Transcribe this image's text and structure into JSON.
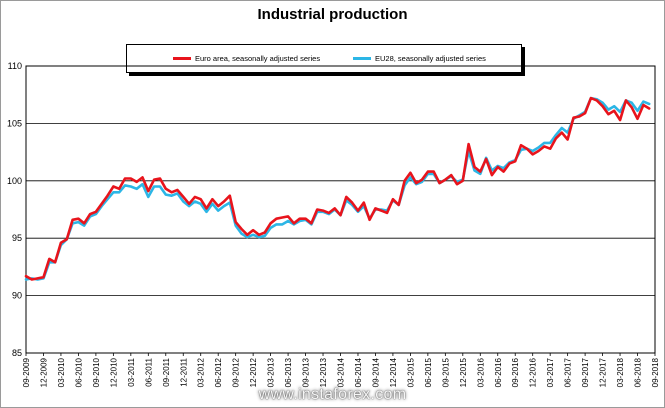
{
  "chart_data": {
    "type": "line",
    "title": "Industrial production",
    "xlabel": "",
    "ylabel": "",
    "ylim": [
      85,
      110
    ],
    "yticks": [
      85,
      90,
      95,
      100,
      105,
      110
    ],
    "grid": true,
    "legend_position": "top",
    "x_tick_labels": [
      "09-2009",
      "12-2009",
      "03-2010",
      "06-2010",
      "09-2010",
      "12-2010",
      "03-2011",
      "06-2011",
      "09-2011",
      "12-2011",
      "03-2012",
      "06-2012",
      "09-2012",
      "12-2012",
      "03-2013",
      "06-2013",
      "09-2013",
      "12-2013",
      "03-2014",
      "06-2014",
      "09-2014",
      "12-2014",
      "03-2015",
      "06-2015",
      "09-2015",
      "12-2015",
      "03-2016",
      "06-2016",
      "09-2016",
      "12-2016",
      "03-2017",
      "06-2017",
      "09-2017",
      "12-2017",
      "03-2018",
      "06-2018",
      "09-2018"
    ],
    "x_start": "09-2009",
    "x_end": "09-2018",
    "series": [
      {
        "name": "Euro area, seasonally adjusted series",
        "color": "#e8141c",
        "values": [
          91.7,
          91.4,
          91.5,
          91.6,
          93.2,
          92.9,
          94.6,
          94.9,
          96.6,
          96.7,
          96.3,
          97.1,
          97.3,
          98.0,
          98.7,
          99.5,
          99.3,
          100.2,
          100.2,
          99.9,
          100.3,
          99.1,
          100.1,
          100.2,
          99.3,
          99.0,
          99.2,
          98.6,
          98.0,
          98.6,
          98.4,
          97.6,
          98.4,
          97.8,
          98.2,
          98.7,
          96.4,
          95.8,
          95.3,
          95.7,
          95.3,
          95.5,
          96.3,
          96.7,
          96.8,
          96.9,
          96.3,
          96.7,
          96.7,
          96.3,
          97.5,
          97.4,
          97.2,
          97.6,
          97.0,
          98.6,
          98.1,
          97.4,
          98.1,
          96.6,
          97.6,
          97.4,
          97.2,
          98.4,
          97.9,
          100.0,
          100.7,
          99.8,
          100.1,
          100.8,
          100.8,
          99.8,
          100.1,
          100.5,
          99.7,
          100.0,
          103.2,
          101.2,
          100.8,
          101.9,
          100.5,
          101.2,
          100.8,
          101.5,
          101.7,
          103.1,
          102.8,
          102.3,
          102.6,
          103.0,
          102.8,
          103.7,
          104.2,
          103.6,
          105.5,
          105.6,
          105.9,
          107.2,
          107.0,
          106.5,
          105.8,
          106.1,
          105.3,
          107.0,
          106.4,
          105.4,
          106.6,
          106.3
        ]
      },
      {
        "name": "EU28, seasonally adjusted series",
        "color": "#2cb6e6",
        "values": [
          91.4,
          91.5,
          91.4,
          91.5,
          92.9,
          92.9,
          94.4,
          94.9,
          96.3,
          96.4,
          96.1,
          96.9,
          97.1,
          97.8,
          98.4,
          99.0,
          99.0,
          99.6,
          99.5,
          99.3,
          99.7,
          98.6,
          99.5,
          99.5,
          98.8,
          98.7,
          98.9,
          98.2,
          97.8,
          98.2,
          98.0,
          97.3,
          98.0,
          97.4,
          97.8,
          98.1,
          96.1,
          95.4,
          95.1,
          95.3,
          95.1,
          95.2,
          95.9,
          96.2,
          96.2,
          96.5,
          96.2,
          96.5,
          96.6,
          96.2,
          97.3,
          97.3,
          97.1,
          97.5,
          97.0,
          98.3,
          97.9,
          97.3,
          97.8,
          96.7,
          97.5,
          97.5,
          97.4,
          98.3,
          97.9,
          99.6,
          100.3,
          99.7,
          99.9,
          100.6,
          100.6,
          99.8,
          100.1,
          100.4,
          99.9,
          100.1,
          102.6,
          100.9,
          100.6,
          102.0,
          100.9,
          101.3,
          101.1,
          101.6,
          101.8,
          102.7,
          102.8,
          102.6,
          102.9,
          103.3,
          103.3,
          104.0,
          104.6,
          104.2,
          105.4,
          105.7,
          106.0,
          107.2,
          107.1,
          106.8,
          106.2,
          106.5,
          106.0,
          107.0,
          106.8,
          106.1,
          106.9,
          106.7
        ]
      }
    ]
  },
  "watermark": "www.instaforex.com"
}
